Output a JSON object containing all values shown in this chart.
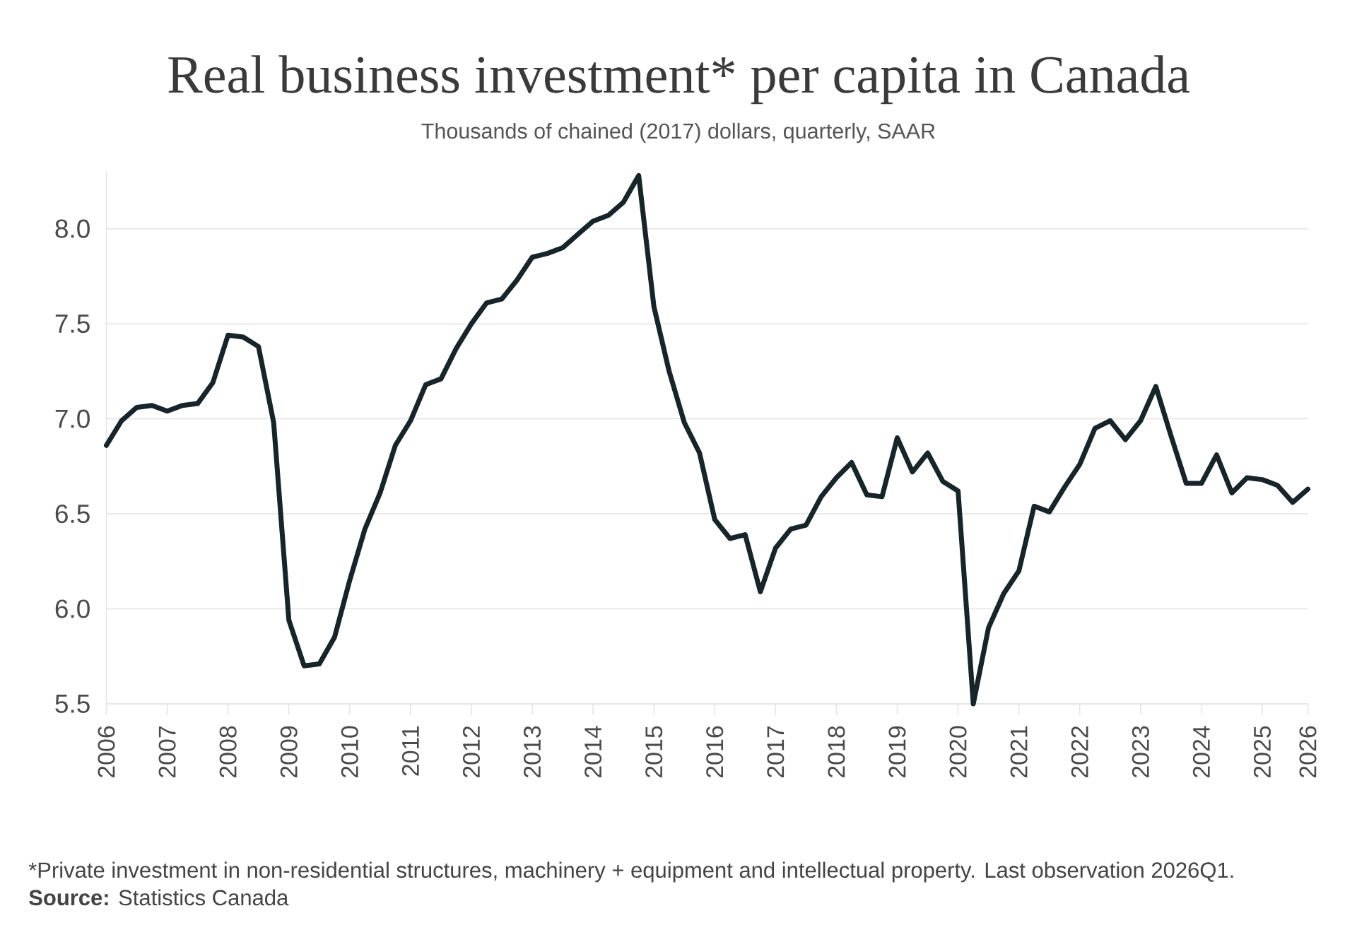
{
  "chart_data": {
    "type": "line",
    "title": "Real business investment* per capita in Canada",
    "subtitle": "Thousands of chained (2017) dollars, quarterly, SAAR",
    "annotations": [
      "*Private investment in non-residential structures, machinery + equipment and intellectual property. Last observation 2026Q1.",
      "**Source:** Statistics Canada"
    ],
    "x": [
      2006,
      2006.25,
      2006.5,
      2006.75,
      2007,
      2007.25,
      2007.5,
      2007.75,
      2008,
      2008.25,
      2008.5,
      2008.75,
      2009,
      2009.25,
      2009.5,
      2009.75,
      2010,
      2010.25,
      2010.5,
      2010.75,
      2011,
      2011.25,
      2011.5,
      2011.75,
      2012,
      2012.25,
      2012.5,
      2012.75,
      2013,
      2013.25,
      2013.5,
      2013.75,
      2014,
      2014.25,
      2014.5,
      2014.75,
      2015,
      2015.25,
      2015.5,
      2015.75,
      2016,
      2016.25,
      2016.5,
      2016.75,
      2017,
      2017.25,
      2017.5,
      2017.75,
      2018,
      2018.25,
      2018.5,
      2018.75,
      2019,
      2019.25,
      2019.5,
      2019.75,
      2020,
      2020.25,
      2020.5,
      2020.75,
      2021,
      2021.25,
      2021.5,
      2021.75,
      2022,
      2022.25,
      2022.5,
      2022.75,
      2023,
      2023.25,
      2023.5,
      2023.75,
      2024,
      2024.25,
      2024.5,
      2024.75,
      2025,
      2025.25,
      2025.5,
      2025.75
    ],
    "values": [
      6.86,
      6.99,
      7.06,
      7.07,
      7.04,
      7.07,
      7.08,
      7.19,
      7.44,
      7.43,
      7.38,
      6.98,
      5.94,
      5.7,
      5.71,
      5.85,
      6.15,
      6.42,
      6.61,
      6.86,
      6.99,
      7.18,
      7.21,
      7.37,
      7.5,
      7.61,
      7.63,
      7.73,
      7.85,
      7.87,
      7.9,
      7.97,
      8.04,
      8.07,
      8.14,
      8.28,
      7.59,
      7.25,
      6.98,
      6.82,
      6.47,
      6.37,
      6.39,
      6.09,
      6.32,
      6.42,
      6.44,
      6.59,
      6.69,
      6.77,
      6.6,
      6.59,
      6.9,
      6.72,
      6.82,
      6.67,
      6.62,
      5.5,
      5.9,
      6.08,
      6.2,
      6.54,
      6.51,
      6.64,
      6.76,
      6.95,
      6.99,
      6.89,
      6.99,
      7.17,
      6.91,
      6.66,
      6.66,
      6.81,
      6.61,
      6.69,
      6.68,
      6.65,
      6.56,
      6.63
    ],
    "color": "#17252b",
    "xlim": [
      2006,
      2025.75
    ],
    "xticks": [
      2006,
      2007,
      2008,
      2009,
      2010,
      2011,
      2012,
      2013,
      2014,
      2015,
      2016,
      2017,
      2018,
      2019,
      2020,
      2021,
      2022,
      2023,
      2024,
      2025,
      {
        "value": 2025.75,
        "label": "2026"
      }
    ],
    "ylim": [
      5.5,
      8.3
    ],
    "yticks": [
      5.5,
      {
        "value": 6,
        "label": "6.0"
      },
      6.5,
      {
        "value": 7,
        "label": "7.0"
      },
      7.5,
      {
        "value": 8,
        "label": "8.0"
      }
    ],
    "grid": "y"
  }
}
